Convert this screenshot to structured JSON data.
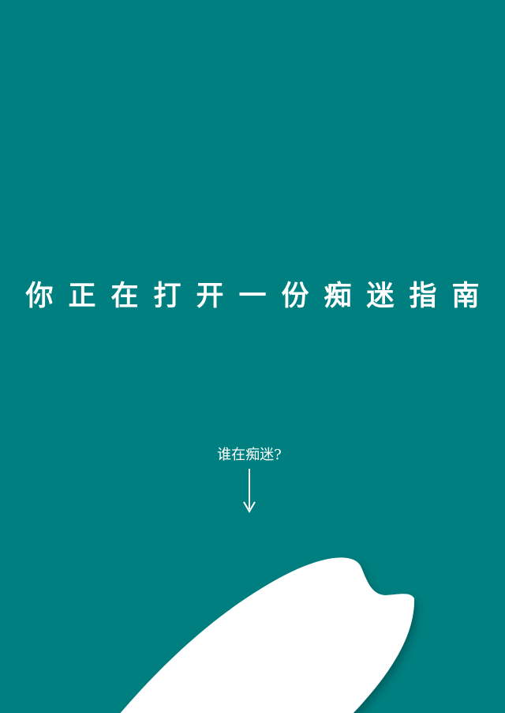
{
  "page": {
    "background_color": "#007f80",
    "foreground_color": "#ffffff"
  },
  "headline": {
    "text": "你正在打开一份痴迷指南"
  },
  "prompt": {
    "text": "谁在痴迷?"
  },
  "icons": {
    "arrow": "arrow-down-icon",
    "shape": "rice-grain-illustration"
  }
}
